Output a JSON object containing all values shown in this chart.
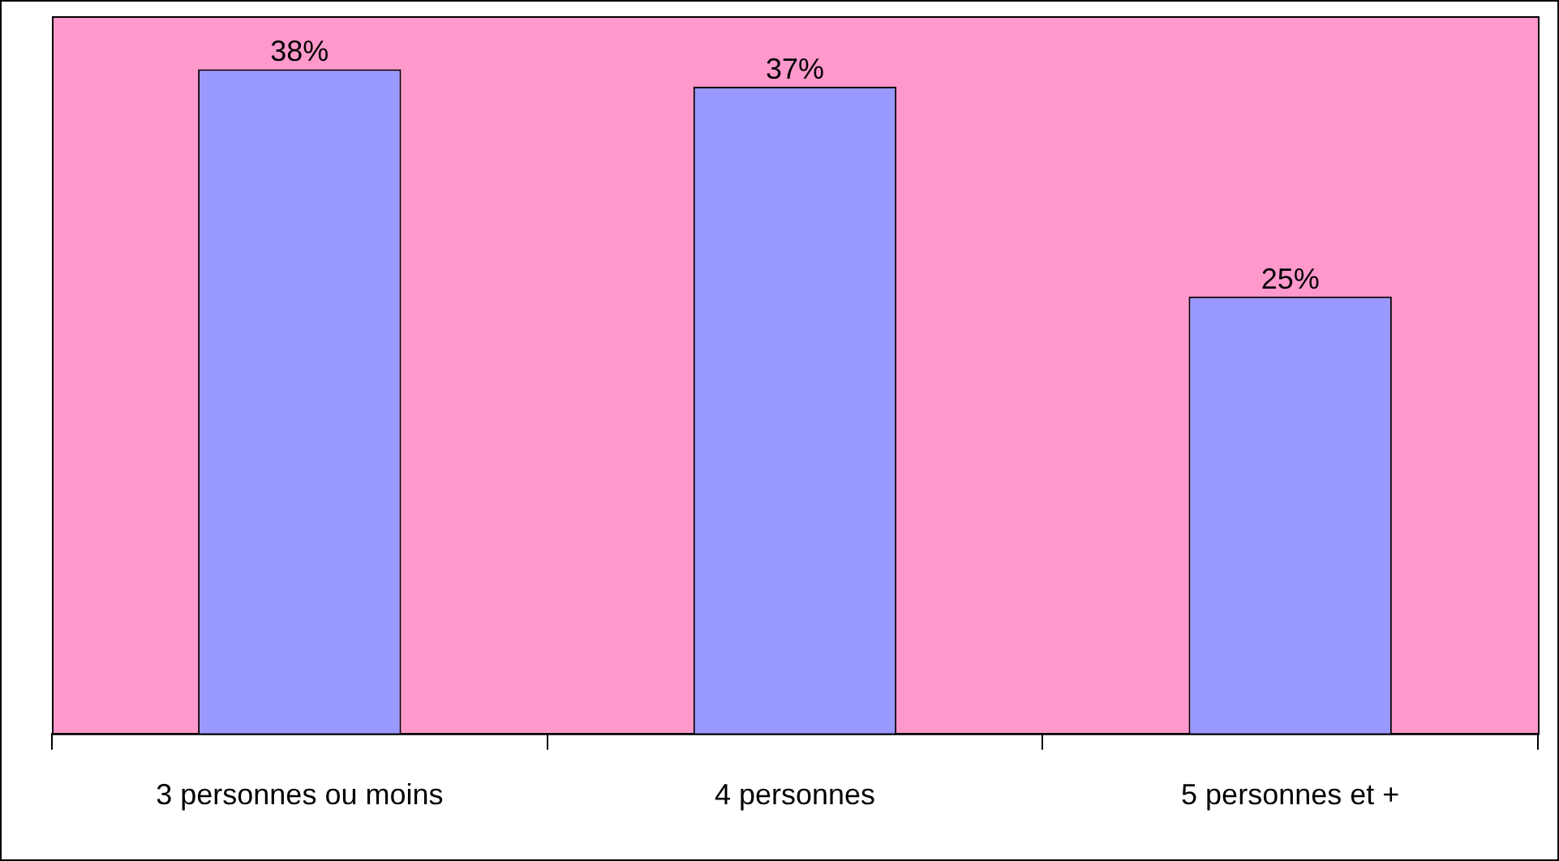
{
  "chart_data": {
    "type": "bar",
    "categories": [
      "3 personnes ou moins",
      "4 personnes",
      "5 personnes et +"
    ],
    "values": [
      38,
      37,
      25
    ],
    "color": "#9999ff",
    "value_labels": [
      "38%",
      "37%",
      "25%"
    ],
    "grid": false,
    "legend": false
  }
}
